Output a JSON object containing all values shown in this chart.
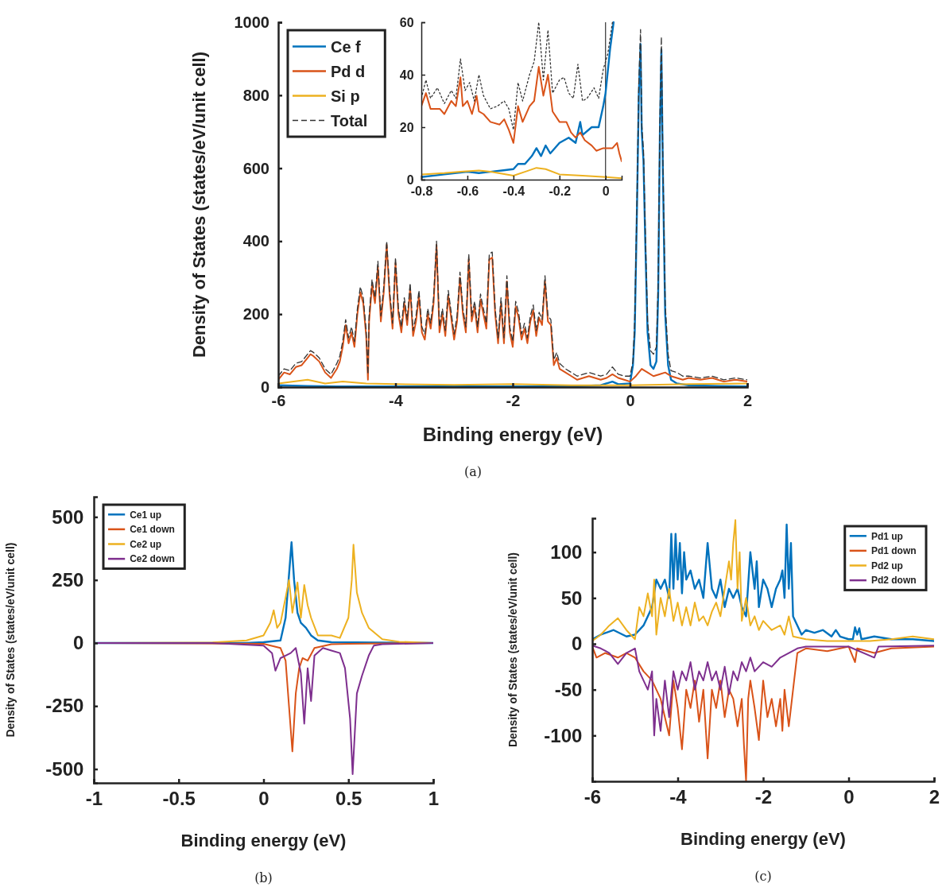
{
  "chart_data": [
    {
      "type": "line",
      "xlabel": "Binding energy (eV)",
      "ylabel": "Density of States (states/eV/unit cell)",
      "xlim": [
        -6,
        2
      ],
      "ylim": [
        0,
        1000
      ],
      "xticks": [
        -6,
        -4,
        -2,
        0,
        2
      ],
      "yticks": [
        0,
        200,
        400,
        600,
        800,
        1000
      ],
      "legend": "top left",
      "grid": false,
      "annotations": [
        "(a)"
      ],
      "series": [
        {
          "name": "Ce f",
          "color": "#0072bd",
          "x": [
            -6,
            -5.5,
            -5,
            -4,
            -3,
            -2,
            -1,
            -0.5,
            -0.3,
            -0.2,
            0,
            0.05,
            0.08,
            0.12,
            0.15,
            0.18,
            0.2,
            0.23,
            0.26,
            0.3,
            0.35,
            0.4,
            0.45,
            0.48,
            0.51,
            0.535,
            0.56,
            0.6,
            0.65,
            0.7,
            0.8,
            1,
            1.5,
            2
          ],
          "values": [
            5,
            3,
            2,
            2,
            2,
            2,
            2,
            5,
            15,
            8,
            10,
            60,
            150,
            500,
            800,
            940,
            700,
            620,
            400,
            150,
            60,
            50,
            70,
            250,
            700,
            925,
            600,
            200,
            60,
            20,
            10,
            5,
            3,
            2
          ]
        },
        {
          "name": "Pd d",
          "color": "#d95319",
          "x": [
            -6,
            -5.9,
            -5.8,
            -5.7,
            -5.6,
            -5.5,
            -5.45,
            -5.4,
            -5.3,
            -5.2,
            -5.1,
            -5,
            -4.95,
            -4.9,
            -4.85,
            -4.8,
            -4.75,
            -4.7,
            -4.65,
            -4.6,
            -4.55,
            -4.5,
            -4.47,
            -4.45,
            -4.4,
            -4.35,
            -4.3,
            -4.25,
            -4.2,
            -4.15,
            -4.1,
            -4.05,
            -4,
            -3.95,
            -3.9,
            -3.85,
            -3.8,
            -3.75,
            -3.7,
            -3.65,
            -3.6,
            -3.55,
            -3.5,
            -3.45,
            -3.4,
            -3.35,
            -3.3,
            -3.25,
            -3.2,
            -3.15,
            -3.1,
            -3.05,
            -3,
            -2.95,
            -2.9,
            -2.85,
            -2.8,
            -2.75,
            -2.7,
            -2.65,
            -2.6,
            -2.55,
            -2.5,
            -2.45,
            -2.4,
            -2.35,
            -2.3,
            -2.25,
            -2.2,
            -2.15,
            -2.1,
            -2.05,
            -2,
            -1.95,
            -1.9,
            -1.85,
            -1.8,
            -1.75,
            -1.7,
            -1.65,
            -1.6,
            -1.55,
            -1.5,
            -1.45,
            -1.4,
            -1.35,
            -1.3,
            -1.25,
            -1.2,
            -1.1,
            -1,
            -0.9,
            -0.8,
            -0.7,
            -0.6,
            -0.5,
            -0.4,
            -0.3,
            -0.2,
            -0.1,
            0,
            0.1,
            0.2,
            0.3,
            0.4,
            0.5,
            0.6,
            0.7,
            0.8,
            0.9,
            1,
            1.2,
            1.4,
            1.6,
            1.8,
            2
          ],
          "values": [
            20,
            40,
            35,
            55,
            60,
            80,
            90,
            85,
            70,
            40,
            25,
            50,
            70,
            110,
            170,
            120,
            150,
            110,
            200,
            260,
            230,
            140,
            20,
            180,
            280,
            230,
            330,
            180,
            260,
            390,
            250,
            160,
            340,
            200,
            150,
            230,
            170,
            270,
            140,
            180,
            250,
            150,
            130,
            200,
            160,
            230,
            390,
            150,
            200,
            140,
            250,
            190,
            130,
            180,
            300,
            200,
            150,
            350,
            180,
            220,
            150,
            240,
            200,
            160,
            350,
            355,
            200,
            120,
            230,
            120,
            290,
            150,
            110,
            220,
            190,
            130,
            160,
            120,
            180,
            210,
            140,
            190,
            170,
            290,
            180,
            170,
            60,
            80,
            50,
            40,
            30,
            20,
            25,
            30,
            25,
            20,
            25,
            35,
            25,
            20,
            15,
            30,
            50,
            40,
            30,
            35,
            40,
            30,
            25,
            20,
            25,
            20,
            25,
            15,
            20,
            15
          ]
        },
        {
          "name": "Si p",
          "color": "#edb120",
          "x": [
            -6,
            -5.5,
            -5.2,
            -4.9,
            -4.5,
            -4,
            -3,
            -2,
            -1,
            0,
            1,
            2
          ],
          "values": [
            10,
            20,
            10,
            15,
            10,
            8,
            6,
            8,
            5,
            5,
            8,
            10
          ]
        },
        {
          "name": "Total",
          "color": "#333333",
          "line_style": "dashed",
          "x": [
            -6,
            -5.9,
            -5.8,
            -5.7,
            -5.6,
            -5.5,
            -5.45,
            -5.4,
            -5.3,
            -5.2,
            -5.1,
            -5,
            -4.95,
            -4.9,
            -4.85,
            -4.8,
            -4.75,
            -4.7,
            -4.65,
            -4.6,
            -4.55,
            -4.5,
            -4.47,
            -4.45,
            -4.4,
            -4.35,
            -4.3,
            -4.25,
            -4.2,
            -4.15,
            -4.1,
            -4.05,
            -4,
            -3.95,
            -3.9,
            -3.85,
            -3.8,
            -3.75,
            -3.7,
            -3.65,
            -3.6,
            -3.55,
            -3.5,
            -3.45,
            -3.4,
            -3.35,
            -3.3,
            -3.25,
            -3.2,
            -3.15,
            -3.1,
            -3.05,
            -3,
            -2.95,
            -2.9,
            -2.85,
            -2.8,
            -2.75,
            -2.7,
            -2.65,
            -2.6,
            -2.55,
            -2.5,
            -2.45,
            -2.4,
            -2.35,
            -2.3,
            -2.25,
            -2.2,
            -2.15,
            -2.1,
            -2.05,
            -2,
            -1.95,
            -1.9,
            -1.85,
            -1.8,
            -1.75,
            -1.7,
            -1.65,
            -1.6,
            -1.55,
            -1.5,
            -1.45,
            -1.4,
            -1.35,
            -1.3,
            -1.25,
            -1.2,
            -1.1,
            -1,
            -0.9,
            -0.8,
            -0.7,
            -0.6,
            -0.5,
            -0.4,
            -0.3,
            -0.2,
            -0.1,
            0,
            0.05,
            0.08,
            0.12,
            0.15,
            0.18,
            0.2,
            0.23,
            0.26,
            0.3,
            0.35,
            0.4,
            0.45,
            0.48,
            0.51,
            0.535,
            0.56,
            0.6,
            0.65,
            0.7,
            0.8,
            0.9,
            1,
            1.2,
            1.4,
            1.6,
            1.8,
            2
          ],
          "values": [
            30,
            50,
            45,
            65,
            70,
            90,
            100,
            95,
            80,
            50,
            35,
            65,
            85,
            125,
            185,
            135,
            165,
            125,
            215,
            275,
            245,
            155,
            35,
            195,
            295,
            245,
            345,
            195,
            275,
            400,
            265,
            175,
            355,
            215,
            165,
            245,
            185,
            285,
            155,
            195,
            265,
            165,
            145,
            215,
            175,
            245,
            400,
            165,
            215,
            155,
            265,
            205,
            145,
            195,
            315,
            215,
            165,
            365,
            195,
            235,
            165,
            255,
            215,
            175,
            365,
            370,
            215,
            135,
            245,
            135,
            305,
            165,
            125,
            235,
            205,
            145,
            175,
            135,
            195,
            225,
            155,
            205,
            185,
            305,
            195,
            185,
            75,
            95,
            65,
            50,
            40,
            30,
            35,
            40,
            35,
            30,
            35,
            55,
            35,
            30,
            30,
            70,
            180,
            520,
            830,
            980,
            720,
            650,
            430,
            180,
            100,
            90,
            110,
            280,
            730,
            960,
            630,
            230,
            90,
            45,
            40,
            30,
            30,
            25,
            30,
            20,
            25,
            20
          ]
        }
      ]
    },
    {
      "type": "line",
      "xlim": [
        -0.8,
        0.07
      ],
      "ylim": [
        0,
        60
      ],
      "xticks": [
        -0.8,
        -0.6,
        -0.4,
        -0.2,
        0
      ],
      "yticks": [
        0,
        20,
        40,
        60
      ],
      "ref_lines": [
        {
          "axis": "x",
          "value": 0,
          "color": "#333333"
        }
      ],
      "series": [
        {
          "color": "#0072bd",
          "x": [
            -0.8,
            -0.7,
            -0.6,
            -0.55,
            -0.5,
            -0.45,
            -0.4,
            -0.38,
            -0.35,
            -0.32,
            -0.3,
            -0.28,
            -0.26,
            -0.24,
            -0.2,
            -0.16,
            -0.13,
            -0.11,
            -0.1,
            -0.06,
            -0.03,
            -0.01,
            0,
            0.02,
            0.035
          ],
          "values": [
            1,
            2,
            3,
            2.5,
            3,
            3.5,
            4,
            6,
            6,
            9,
            12,
            9,
            13,
            10,
            14,
            16,
            14,
            22,
            17,
            20,
            20,
            28,
            33,
            50,
            60
          ]
        },
        {
          "color": "#d95319",
          "x": [
            -0.8,
            -0.78,
            -0.76,
            -0.72,
            -0.7,
            -0.67,
            -0.65,
            -0.63,
            -0.62,
            -0.6,
            -0.58,
            -0.56,
            -0.55,
            -0.53,
            -0.5,
            -0.46,
            -0.44,
            -0.42,
            -0.4,
            -0.38,
            -0.36,
            -0.33,
            -0.31,
            -0.29,
            -0.27,
            -0.25,
            -0.23,
            -0.2,
            -0.17,
            -0.15,
            -0.13,
            -0.11,
            -0.09,
            -0.06,
            -0.04,
            -0.01,
            0.03,
            0.05,
            0.06,
            0.07
          ],
          "values": [
            28,
            33,
            27,
            27,
            25,
            30,
            28,
            39,
            28,
            30,
            25,
            32,
            26,
            25,
            22,
            21,
            23,
            19,
            14,
            28,
            22,
            28,
            30,
            43,
            32,
            40,
            26,
            22,
            22,
            18,
            16,
            18,
            15,
            13,
            11,
            12,
            12,
            14,
            10,
            7
          ]
        },
        {
          "color": "#edb120",
          "x": [
            -0.8,
            -0.7,
            -0.63,
            -0.55,
            -0.5,
            -0.4,
            -0.35,
            -0.3,
            -0.26,
            -0.2,
            -0.1,
            0,
            0.07
          ],
          "values": [
            2,
            2.5,
            3,
            3.5,
            3,
            1.5,
            3,
            4.5,
            4,
            2,
            1.5,
            1,
            0.5
          ]
        },
        {
          "color": "#333333",
          "line_style": "dotted",
          "x": [
            -0.8,
            -0.78,
            -0.76,
            -0.73,
            -0.7,
            -0.67,
            -0.65,
            -0.63,
            -0.61,
            -0.59,
            -0.57,
            -0.55,
            -0.53,
            -0.5,
            -0.47,
            -0.44,
            -0.42,
            -0.4,
            -0.38,
            -0.36,
            -0.33,
            -0.31,
            -0.29,
            -0.27,
            -0.25,
            -0.23,
            -0.2,
            -0.18,
            -0.16,
            -0.14,
            -0.12,
            -0.1,
            -0.08,
            -0.05,
            -0.03,
            -0.01,
            0.01,
            0.03
          ],
          "values": [
            31,
            38,
            31,
            35,
            29,
            34,
            31,
            46,
            34,
            37,
            30,
            40,
            32,
            27,
            28,
            30,
            27,
            19,
            37,
            30,
            40,
            45,
            60,
            38,
            57,
            33,
            38,
            39,
            33,
            31,
            44,
            30,
            31,
            35,
            31,
            42,
            48,
            60
          ]
        }
      ]
    },
    {
      "type": "line",
      "xlabel": "Binding energy  (eV)",
      "ylabel": "Density of States (states/eV/unit cell)",
      "xlim": [
        -1,
        1
      ],
      "ylim": [
        -555,
        580
      ],
      "xticks": [
        -1,
        -0.5,
        0,
        0.5,
        1
      ],
      "yticks": [
        -500,
        -250,
        0,
        250,
        500
      ],
      "legend": "top left",
      "annotations": [
        "(b)"
      ],
      "series": [
        {
          "name": "Ce1 up",
          "color": "#0072bd",
          "x": [
            -1,
            -0.1,
            0,
            0.1,
            0.13,
            0.15,
            0.165,
            0.18,
            0.2,
            0.22,
            0.25,
            0.28,
            0.32,
            0.4,
            1
          ],
          "values": [
            0,
            0,
            3,
            10,
            100,
            270,
            400,
            250,
            120,
            80,
            60,
            30,
            10,
            3,
            0
          ]
        },
        {
          "name": "Ce1 down",
          "color": "#d95319",
          "x": [
            -1,
            0,
            0.1,
            0.13,
            0.15,
            0.17,
            0.19,
            0.21,
            0.23,
            0.26,
            0.3,
            0.4,
            0.5,
            1
          ],
          "values": [
            0,
            -3,
            -20,
            -70,
            -250,
            -430,
            -200,
            -100,
            -60,
            -70,
            -20,
            -5,
            -3,
            0
          ]
        },
        {
          "name": "Ce2 up",
          "color": "#edb120",
          "x": [
            -1,
            -0.3,
            -0.1,
            0,
            0.04,
            0.06,
            0.08,
            0.1,
            0.13,
            0.15,
            0.17,
            0.2,
            0.22,
            0.24,
            0.26,
            0.28,
            0.32,
            0.4,
            0.45,
            0.5,
            0.52,
            0.53,
            0.55,
            0.58,
            0.62,
            0.7,
            0.8,
            1
          ],
          "values": [
            0,
            2,
            10,
            30,
            80,
            130,
            60,
            80,
            180,
            250,
            120,
            240,
            100,
            230,
            150,
            100,
            30,
            30,
            20,
            100,
            250,
            390,
            200,
            120,
            60,
            15,
            5,
            0
          ]
        },
        {
          "name": "Ce2 down",
          "color": "#7e2f8e",
          "x": [
            -1,
            -0.3,
            0,
            0.05,
            0.07,
            0.1,
            0.13,
            0.16,
            0.19,
            0.22,
            0.24,
            0.26,
            0.28,
            0.3,
            0.35,
            0.4,
            0.45,
            0.48,
            0.51,
            0.525,
            0.55,
            0.58,
            0.62,
            0.65,
            0.7,
            1
          ],
          "values": [
            0,
            0,
            -10,
            -40,
            -110,
            -60,
            -50,
            -40,
            -20,
            -120,
            -320,
            -100,
            -230,
            -50,
            -20,
            -30,
            -40,
            -100,
            -300,
            -520,
            -200,
            -130,
            -50,
            -10,
            -5,
            0
          ]
        }
      ]
    },
    {
      "type": "line",
      "xlabel": "Binding energy  (eV)",
      "ylabel": "Density of States (states/eV/unit cell)",
      "xlim": [
        -6,
        2
      ],
      "ylim": [
        -150,
        137
      ],
      "xticks": [
        -6,
        -4,
        -2,
        0,
        2
      ],
      "yticks": [
        -100,
        -50,
        0,
        50,
        100
      ],
      "legend": "top right",
      "annotations": [
        "(c)"
      ],
      "series": [
        {
          "name": "Pd1 up",
          "color": "#0072bd",
          "x": [
            -6,
            -5.8,
            -5.5,
            -5.2,
            -5,
            -4.8,
            -4.6,
            -4.5,
            -4.4,
            -4.3,
            -4.2,
            -4.15,
            -4.1,
            -4.05,
            -4,
            -3.95,
            -3.9,
            -3.85,
            -3.8,
            -3.7,
            -3.6,
            -3.5,
            -3.4,
            -3.3,
            -3.2,
            -3.1,
            -3,
            -2.9,
            -2.8,
            -2.7,
            -2.6,
            -2.5,
            -2.4,
            -2.3,
            -2.2,
            -2.15,
            -2.1,
            -2,
            -1.9,
            -1.8,
            -1.7,
            -1.6,
            -1.55,
            -1.5,
            -1.45,
            -1.4,
            -1.35,
            -1.3,
            -1.2,
            -1.1,
            -1,
            -0.8,
            -0.6,
            -0.4,
            -0.3,
            -0.2,
            0,
            0.1,
            0.15,
            0.2,
            0.25,
            0.3,
            0.6,
            1,
            1.5,
            2
          ],
          "values": [
            5,
            10,
            15,
            8,
            10,
            20,
            40,
            70,
            60,
            70,
            50,
            120,
            60,
            120,
            70,
            110,
            55,
            100,
            70,
            80,
            60,
            70,
            50,
            110,
            60,
            50,
            70,
            40,
            60,
            50,
            60,
            40,
            30,
            100,
            60,
            90,
            40,
            70,
            60,
            40,
            60,
            70,
            80,
            50,
            130,
            60,
            110,
            30,
            20,
            10,
            15,
            12,
            15,
            8,
            15,
            8,
            5,
            5,
            18,
            10,
            17,
            5,
            8,
            5,
            5,
            3
          ]
        },
        {
          "name": "Pd1 down",
          "color": "#d95319",
          "x": [
            -6,
            -5.9,
            -5.7,
            -5.4,
            -5.2,
            -5,
            -4.8,
            -4.6,
            -4.4,
            -4.2,
            -4.1,
            -4,
            -3.9,
            -3.8,
            -3.7,
            -3.6,
            -3.5,
            -3.4,
            -3.3,
            -3.2,
            -3.1,
            -3,
            -2.9,
            -2.8,
            -2.7,
            -2.6,
            -2.5,
            -2.45,
            -2.4,
            -2.35,
            -2.3,
            -2.2,
            -2.1,
            -2,
            -1.9,
            -1.8,
            -1.7,
            -1.6,
            -1.55,
            -1.5,
            -1.45,
            -1.4,
            -1.3,
            -1.2,
            -1,
            -0.5,
            0,
            0.15,
            0.2,
            0.6,
            1,
            2
          ],
          "values": [
            -3,
            -15,
            -10,
            -15,
            -10,
            -15,
            -30,
            -40,
            -60,
            -100,
            -40,
            -70,
            -115,
            -50,
            -70,
            -40,
            -85,
            -50,
            -125,
            -50,
            -70,
            -40,
            -80,
            -50,
            -60,
            -90,
            -60,
            -110,
            -150,
            -60,
            -40,
            -70,
            -105,
            -40,
            -80,
            -60,
            -90,
            -60,
            -95,
            -50,
            -70,
            -90,
            -50,
            -10,
            -5,
            -8,
            -3,
            -20,
            -5,
            -10,
            -5,
            -3
          ]
        },
        {
          "name": "Pd2 up",
          "color": "#edb120",
          "x": [
            -6,
            -5.8,
            -5.6,
            -5.4,
            -5.2,
            -5,
            -4.9,
            -4.8,
            -4.7,
            -4.6,
            -4.55,
            -4.5,
            -4.4,
            -4.3,
            -4.2,
            -4.1,
            -4,
            -3.9,
            -3.8,
            -3.7,
            -3.6,
            -3.5,
            -3.4,
            -3.3,
            -3.2,
            -3.1,
            -3,
            -2.9,
            -2.8,
            -2.75,
            -2.7,
            -2.65,
            -2.6,
            -2.55,
            -2.5,
            -2.4,
            -2.3,
            -2.2,
            -2.1,
            -2,
            -1.8,
            -1.6,
            -1.5,
            -1.4,
            -1.3,
            -1,
            -0.5,
            0,
            0.5,
            1,
            1.5,
            2
          ],
          "values": [
            3,
            10,
            20,
            28,
            15,
            5,
            40,
            30,
            55,
            30,
            70,
            10,
            50,
            30,
            60,
            25,
            45,
            20,
            40,
            20,
            45,
            25,
            30,
            20,
            35,
            45,
            30,
            60,
            90,
            70,
            110,
            135,
            60,
            100,
            25,
            50,
            20,
            30,
            15,
            25,
            15,
            20,
            10,
            30,
            8,
            5,
            3,
            3,
            3,
            5,
            8,
            5
          ]
        },
        {
          "name": "Pd2 down",
          "color": "#7e2f8e",
          "x": [
            -6,
            -5.8,
            -5.6,
            -5.4,
            -5.2,
            -5,
            -4.9,
            -4.8,
            -4.7,
            -4.6,
            -4.55,
            -4.5,
            -4.4,
            -4.3,
            -4.2,
            -4.1,
            -4,
            -3.9,
            -3.8,
            -3.7,
            -3.6,
            -3.5,
            -3.4,
            -3.3,
            -3.2,
            -3.1,
            -3,
            -2.9,
            -2.8,
            -2.7,
            -2.6,
            -2.5,
            -2.4,
            -2.3,
            -2.2,
            -2,
            -1.8,
            -1.6,
            -1.4,
            -1.2,
            -1,
            0,
            0.6,
            0.7,
            2
          ],
          "values": [
            -2,
            -5,
            -10,
            -22,
            -10,
            -5,
            -30,
            -40,
            -50,
            -30,
            -100,
            -60,
            -95,
            -40,
            -80,
            -30,
            -50,
            -30,
            -40,
            -20,
            -50,
            -30,
            -40,
            -20,
            -40,
            -30,
            -50,
            -25,
            -55,
            -30,
            -40,
            -20,
            -30,
            -15,
            -30,
            -20,
            -25,
            -15,
            -10,
            -5,
            -3,
            -3,
            -15,
            -3,
            -2
          ]
        }
      ]
    }
  ]
}
